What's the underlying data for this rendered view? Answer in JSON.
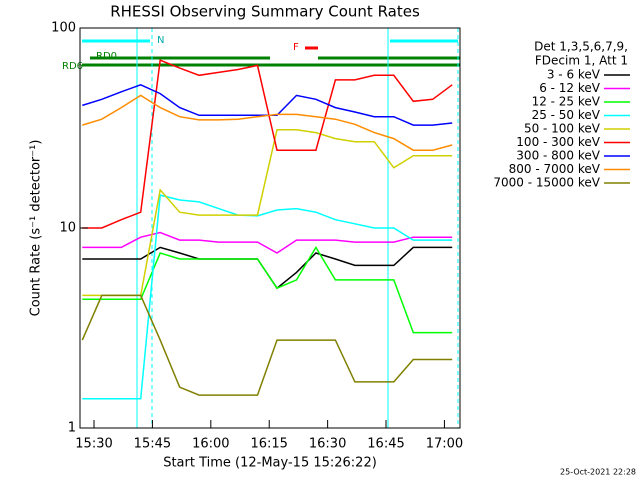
{
  "chart_data": {
    "type": "line",
    "title": "RHESSI Observing Summary Count Rates",
    "x_label": "Start Time (12-May-15 15:26:22)",
    "y_label": "Count Rate (s⁻¹ detector⁻¹)",
    "legend_header": [
      "Det 1,3,5,6,7,9,",
      "FDecim 1, Att 1"
    ],
    "annotations": [
      "RD0",
      "RD6",
      "N",
      "F"
    ],
    "footer": "25-Oct-2021 22:28",
    "ylog": true,
    "legend": "right",
    "xlim": [
      926.4,
      1024
    ],
    "xticks": [
      {
        "value": 930,
        "label": "15:30"
      },
      {
        "value": 945,
        "label": "15:45"
      },
      {
        "value": 960,
        "label": "16:00"
      },
      {
        "value": 975,
        "label": "16:15"
      },
      {
        "value": 990,
        "label": "16:30"
      },
      {
        "value": 1005,
        "label": "16:45"
      },
      {
        "value": 1020,
        "label": "17:00"
      }
    ],
    "ylim": [
      1,
      100
    ],
    "yticks": [
      1,
      10,
      100
    ],
    "x": [
      927,
      932,
      937,
      942,
      947,
      952,
      957,
      962,
      967,
      972,
      977,
      982,
      987,
      992,
      997,
      1002,
      1007,
      1012,
      1017,
      1022
    ],
    "series": [
      {
        "name": "3 - 6 keV",
        "color": "#000000",
        "values": [
          7,
          7,
          7,
          7,
          8,
          7.5,
          7,
          7,
          7,
          7,
          5,
          6,
          7.5,
          7,
          6.5,
          6.5,
          6.5,
          8,
          8,
          8
        ]
      },
      {
        "name": "6 - 12 keV",
        "color": "#ff00ff",
        "values": [
          8,
          8,
          8,
          9,
          9.5,
          8.7,
          8.7,
          8.5,
          8.5,
          8.5,
          7.5,
          8.7,
          8.7,
          8.7,
          8.5,
          8.5,
          8.5,
          9,
          9,
          9
        ]
      },
      {
        "name": "12 - 25 keV",
        "color": "#00ff00",
        "values": [
          4.4,
          4.4,
          4.4,
          4.4,
          7.5,
          7,
          7,
          7,
          7,
          7,
          5,
          5.5,
          8,
          5.5,
          5.5,
          5.5,
          5.5,
          3,
          3,
          3
        ]
      },
      {
        "name": "25 - 50 keV",
        "color": "#00ffff",
        "values": [
          1.4,
          1.4,
          1.4,
          1.4,
          14.6,
          13.8,
          13.5,
          12.5,
          11.6,
          11.5,
          12.3,
          12.5,
          12,
          11,
          10.5,
          10,
          10,
          8.7,
          8.7,
          8.7
        ]
      },
      {
        "name": "50 - 100 keV",
        "color": "#d0d000",
        "values": [
          4.6,
          4.6,
          4.6,
          4.6,
          15.5,
          12,
          11.6,
          11.6,
          11.6,
          11.6,
          31,
          31,
          30,
          28,
          27,
          27,
          20,
          23,
          23,
          23
        ]
      },
      {
        "name": "100 - 300 keV",
        "color": "#ff0000",
        "values": [
          10,
          10,
          11,
          12,
          69,
          63,
          58,
          60,
          62,
          65,
          24.5,
          24.5,
          24.5,
          55,
          55,
          58,
          58,
          43,
          44,
          52
        ]
      },
      {
        "name": "300 - 800 keV",
        "color": "#0000ff",
        "values": [
          41,
          44,
          48,
          52,
          47,
          40,
          36.6,
          36.6,
          36.6,
          36.6,
          36.6,
          46,
          44,
          40,
          38,
          36,
          36,
          32.7,
          32.7,
          33.5
        ]
      },
      {
        "name": "800 - 7000 keV",
        "color": "#ff8c00",
        "values": [
          32.7,
          35,
          40,
          46,
          40,
          36,
          34.7,
          34.7,
          35,
          36,
          37,
          37,
          36,
          35,
          33,
          30,
          28,
          24.5,
          24.5,
          26
        ]
      },
      {
        "name": "7000 - 15000 keV",
        "color": "#808000",
        "values": [
          2.75,
          4.6,
          4.6,
          4.6,
          2.75,
          1.6,
          1.46,
          1.46,
          1.46,
          1.46,
          2.75,
          2.75,
          2.75,
          2.75,
          1.7,
          1.7,
          1.7,
          2.2,
          2.2,
          2.2
        ]
      }
    ]
  }
}
